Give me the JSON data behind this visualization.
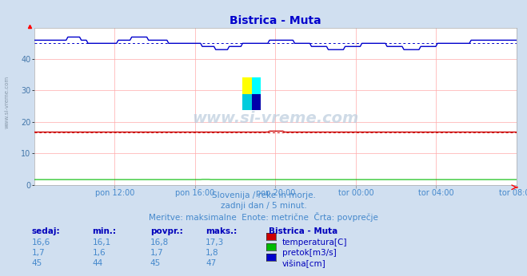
{
  "title": "Bistrica - Muta",
  "title_color": "#0000cc",
  "bg_color": "#d0dff0",
  "plot_bg_color": "#ffffff",
  "grid_color": "#ffaaaa",
  "xlabel_color": "#4488cc",
  "ytick_color": "#4477aa",
  "n_points": 288,
  "temp_avg": 16.8,
  "temp_min": 16.1,
  "temp_max": 17.3,
  "temp_current": 16.6,
  "pretok_avg": 1.7,
  "pretok_min": 1.6,
  "pretok_max": 1.8,
  "pretok_current": 1.7,
  "visina_avg": 45,
  "visina_min": 44,
  "visina_max": 47,
  "visina_current": 45,
  "temp_color": "#cc0000",
  "pretok_color": "#00bb00",
  "visina_color": "#0000cc",
  "ylim": [
    0,
    50
  ],
  "yticks": [
    0,
    10,
    20,
    30,
    40
  ],
  "xtick_labels": [
    "pon 12:00",
    "pon 16:00",
    "pon 20:00",
    "tor 00:00",
    "tor 04:00",
    "tor 08:00"
  ],
  "subtitle1": "Slovenija / reke in morje.",
  "subtitle2": "zadnji dan / 5 minut.",
  "subtitle3": "Meritve: maksimalne  Enote: metrične  Črta: povprečje",
  "subtitle_color": "#4488cc",
  "table_header_color": "#0000bb",
  "table_data_color": "#4488cc",
  "table_label_color": "#0000bb",
  "watermark": "www.si-vreme.com",
  "side_label": "www.si-vreme.com",
  "side_label_color": "#8899aa",
  "rows": [
    [
      "16,6",
      "16,1",
      "16,8",
      "17,3"
    ],
    [
      "1,7",
      "1,6",
      "1,7",
      "1,8"
    ],
    [
      "45",
      "44",
      "45",
      "47"
    ]
  ],
  "legend_items": [
    "temperatura[C]",
    "pretok[m3/s]",
    "višina[cm]"
  ],
  "legend_colors": [
    "#cc0000",
    "#00bb00",
    "#0000cc"
  ]
}
